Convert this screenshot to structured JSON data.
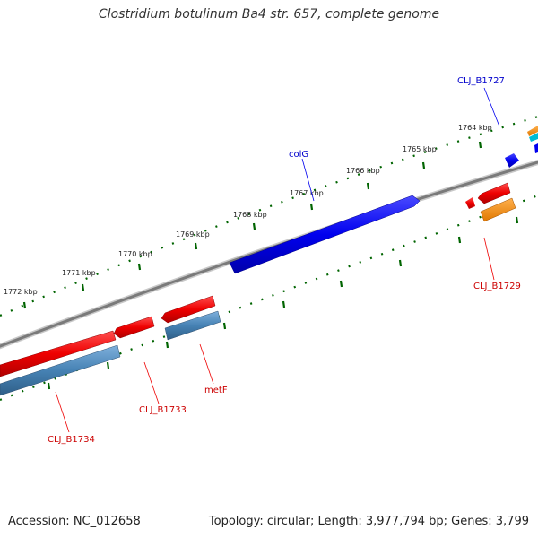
{
  "title": "Clostridium botulinum Ba4 str. 657, complete genome",
  "footer": {
    "accession": "Accession: NC_012658",
    "summary": "Topology: circular; Length: 3,977,794 bp; Genes: 3,799"
  },
  "scale_labels": [
    "1764 kbp",
    "1765 kbp",
    "1766 kbp",
    "1767 kbp",
    "1768 kbp",
    "1769 kbp",
    "1770 kbp",
    "1771 kbp",
    "1772 kbp"
  ],
  "gene_labels": {
    "clj_b1727": "CLJ_B1727",
    "colg": "colG",
    "clj_b1729": "CLJ_B1729",
    "metf": "metF",
    "clj_b1733": "CLJ_B1733",
    "clj_b1734": "CLJ_B1734"
  },
  "colors": {
    "forward_gene": "#0000ee",
    "reverse_gene": "#ee0000",
    "reverse_cds": "#4682b4",
    "backbone": "#808080",
    "ticks": "#006400",
    "orange_feature": "#ff8c00",
    "cyan_feature": "#00bcd4"
  }
}
